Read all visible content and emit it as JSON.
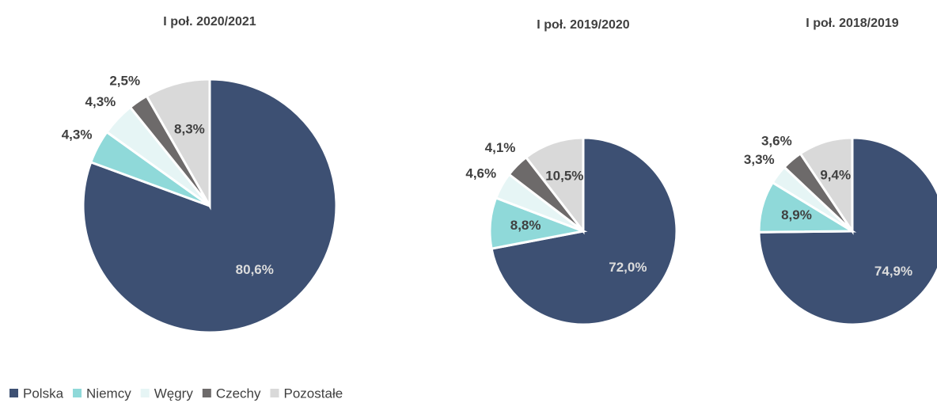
{
  "chart_data": [
    {
      "type": "pie",
      "title": "I poł. 2020/2021",
      "categories": [
        "Polska",
        "Niemcy",
        "Węgry",
        "Czechy",
        "Pozostałe"
      ],
      "values": [
        80.6,
        4.3,
        4.3,
        2.5,
        8.3
      ],
      "value_labels": [
        "80,6%",
        "4,3%",
        "4,3%",
        "2,5%",
        "8,3%"
      ],
      "colors": [
        "#3d5073",
        "#8fd9d9",
        "#e6f5f5",
        "#6d6a6a",
        "#d9d9d9"
      ]
    },
    {
      "type": "pie",
      "title": "I poł. 2019/2020",
      "categories": [
        "Polska",
        "Niemcy",
        "Węgry",
        "Czechy",
        "Pozostałe"
      ],
      "values": [
        72.0,
        8.8,
        4.6,
        4.1,
        10.5
      ],
      "value_labels": [
        "72,0%",
        "8,8%",
        "4,6%",
        "4,1%",
        "10,5%"
      ],
      "colors": [
        "#3d5073",
        "#8fd9d9",
        "#e6f5f5",
        "#6d6a6a",
        "#d9d9d9"
      ]
    },
    {
      "type": "pie",
      "title": "I poł. 2018/2019",
      "categories": [
        "Polska",
        "Niemcy",
        "Węgry",
        "Czechy",
        "Pozostałe"
      ],
      "values": [
        74.9,
        8.9,
        3.3,
        3.6,
        9.4
      ],
      "value_labels": [
        "74,9%",
        "8,9%",
        "3,3%",
        "3,6%",
        "9,4%"
      ],
      "colors": [
        "#3d5073",
        "#8fd9d9",
        "#e6f5f5",
        "#6d6a6a",
        "#d9d9d9"
      ]
    }
  ]
}
